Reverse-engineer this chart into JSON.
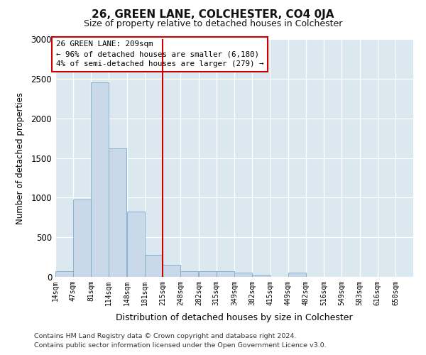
{
  "title": "26, GREEN LANE, COLCHESTER, CO4 0JA",
  "subtitle": "Size of property relative to detached houses in Colchester",
  "xlabel": "Distribution of detached houses by size in Colchester",
  "ylabel": "Number of detached properties",
  "bar_color": "#c9d9ea",
  "bar_edge_color": "#7aaac8",
  "background_color": "#dce8f0",
  "fig_background": "#ffffff",
  "grid_color": "#ffffff",
  "vline_x": 215,
  "vline_color": "#cc0000",
  "annotation_text": "26 GREEN LANE: 209sqm\n← 96% of detached houses are smaller (6,180)\n4% of semi-detached houses are larger (279) →",
  "annotation_box_color": "#cc0000",
  "bin_edges": [
    14,
    47,
    81,
    114,
    148,
    181,
    215,
    248,
    282,
    315,
    349,
    382,
    415,
    449,
    482,
    516,
    549,
    583,
    616,
    650,
    683
  ],
  "bin_values": [
    75,
    975,
    2450,
    1625,
    825,
    275,
    150,
    75,
    75,
    75,
    50,
    25,
    0,
    50,
    0,
    0,
    0,
    0,
    0,
    0
  ],
  "ylim": [
    0,
    3000
  ],
  "yticks": [
    0,
    500,
    1000,
    1500,
    2000,
    2500,
    3000
  ],
  "footnote_line1": "Contains HM Land Registry data © Crown copyright and database right 2024.",
  "footnote_line2": "Contains public sector information licensed under the Open Government Licence v3.0."
}
